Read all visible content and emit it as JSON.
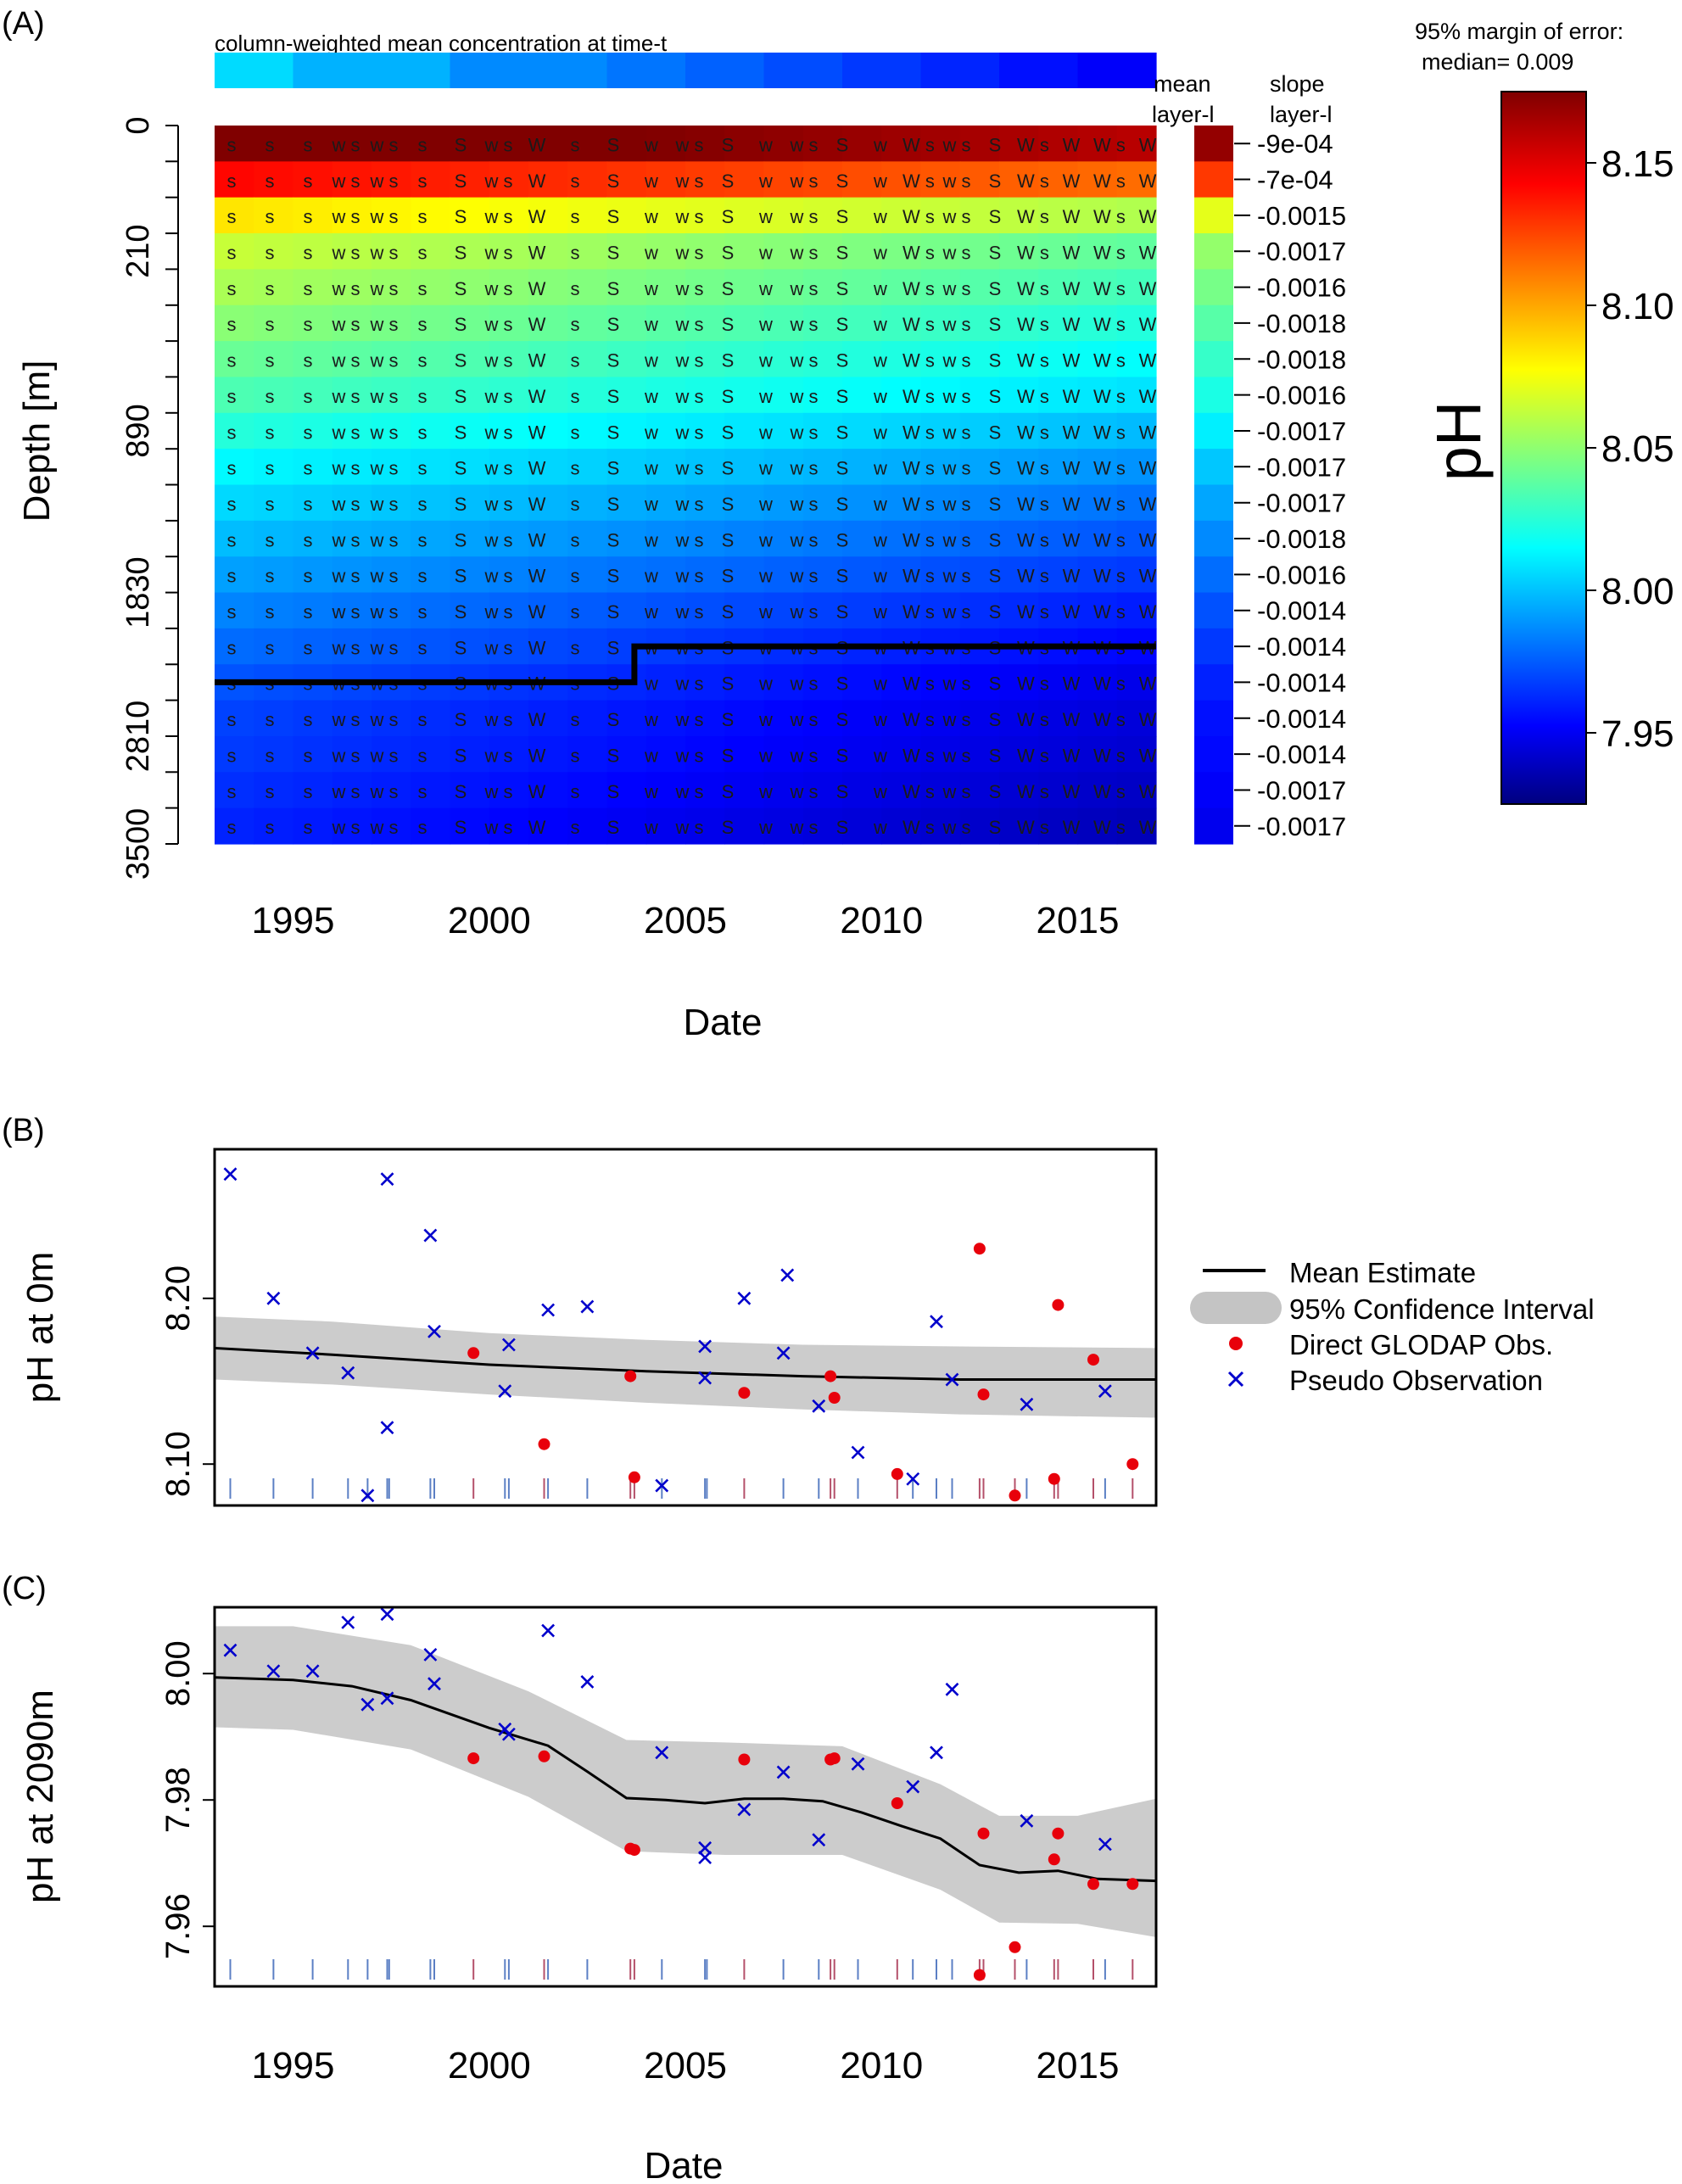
{
  "panel_a": {
    "label": "(A)",
    "top_bar_label": "column-weighted mean concentration at time-t",
    "mean_label_1": "mean",
    "mean_label_2": "layer-l",
    "slope_label_1": "slope",
    "slope_label_2": "layer-l",
    "margin_label_1": "95% margin of error:",
    "margin_label_2": "median= 0.009",
    "colorbar_title": "pH",
    "colorbar_ticks": [
      "8.15",
      "8.10",
      "8.05",
      "8.00",
      "7.95"
    ],
    "ylabel": "Depth [m]",
    "xlabel": "Date",
    "depth_ticks": [
      "0",
      "210",
      "890",
      "1830",
      "2810",
      "3500"
    ],
    "x_ticks": [
      "1995",
      "2000",
      "2005",
      "2010",
      "2015"
    ],
    "slopes": [
      "-9e-04",
      "-7e-04",
      "-0.0015",
      "-0.0017",
      "-0.0016",
      "-0.0018",
      "-0.0018",
      "-0.0016",
      "-0.0017",
      "-0.0017",
      "-0.0017",
      "-0.0018",
      "-0.0016",
      "-0.0014",
      "-0.0014",
      "-0.0014",
      "-0.0014",
      "-0.0014",
      "-0.0017",
      "-0.0017"
    ],
    "symbol_row": [
      "s",
      "s",
      "s",
      "w s",
      "w s",
      "s",
      "S",
      "w s",
      "W",
      "s",
      "S",
      "w",
      "w s",
      "S",
      "w",
      "w s",
      "S",
      "w",
      "W s",
      "w s",
      "S",
      "W s",
      "W",
      "W s",
      "W"
    ],
    "layer_means": [
      8.17,
      8.13,
      8.075,
      8.055,
      8.048,
      8.04,
      8.032,
      8.025,
      8.015,
      8.005,
      7.997,
      7.99,
      7.983,
      7.976,
      7.97,
      7.964,
      7.96,
      7.958,
      7.955,
      7.952
    ],
    "top_bar_values": [
      8.01,
      8.0,
      8.0,
      7.99,
      7.99,
      7.985,
      7.98,
      7.975,
      7.97,
      7.965,
      7.96,
      7.955
    ]
  },
  "panel_b": {
    "label": "(B)",
    "ylabel": "pH at 0m",
    "xlabel": "",
    "y_ticks": [
      "8.20",
      "8.10"
    ],
    "x_ticks": [],
    "legend": {
      "mean": "Mean Estimate",
      "ci": "95% Confidence Interval",
      "glodap": "Direct GLODAP Obs.",
      "pseudo": "Pseudo Observation"
    }
  },
  "panel_c": {
    "label": "(C)",
    "ylabel": "pH at 2090m",
    "xlabel": "Date",
    "y_ticks": [
      "8.00",
      "7.98",
      "7.96"
    ],
    "x_ticks": [
      "1995",
      "2000",
      "2005",
      "2010",
      "2015"
    ]
  },
  "colors": {
    "mean_line": "#000000",
    "ci_band": "#cccccc",
    "glodap": "#e8000b",
    "pseudo": "#0000cc",
    "rug_blue": "#5b7fc4",
    "rug_red": "#b4506a"
  },
  "chart_data": [
    {
      "type": "heatmap",
      "title": "column-weighted mean concentration at time-t",
      "xlabel": "Date",
      "ylabel": "Depth [m]",
      "xlim": [
        1993,
        2017
      ],
      "ylim": [
        3500,
        0
      ],
      "colorbar_range": [
        7.925,
        8.175
      ],
      "colorbar_label": "pH",
      "transition_years": [
        1993.0,
        2003.7,
        2003.7,
        2017.0
      ],
      "transition_layers": [
        15.5,
        15.5,
        14.5,
        14.5
      ]
    },
    {
      "type": "line",
      "title": "",
      "xlabel": "",
      "ylabel": "pH at 0m",
      "xlim": [
        1993,
        2017
      ],
      "ylim": [
        8.075,
        8.29
      ],
      "series": [
        {
          "name": "Mean Estimate",
          "x": [
            1993,
            1996,
            2000,
            2004,
            2008,
            2012,
            2017
          ],
          "y": [
            8.17,
            8.166,
            8.16,
            8.156,
            8.153,
            8.151,
            8.151
          ]
        },
        {
          "name": "95% Confidence Interval",
          "x": [
            1993,
            1996,
            2000,
            2004,
            2008,
            2012,
            2017
          ],
          "lower": [
            8.151,
            8.148,
            8.142,
            8.137,
            8.133,
            8.13,
            8.128
          ],
          "upper": [
            8.189,
            8.186,
            8.179,
            8.175,
            8.172,
            8.171,
            8.17
          ]
        },
        {
          "name": "Direct GLODAP Obs.",
          "x": [
            1999.6,
            2001.4,
            2003.6,
            2003.7,
            2006.5,
            2008.7,
            2008.8,
            2010.4,
            2012.5,
            2012.6,
            2013.4,
            2014.4,
            2014.5,
            2015.4,
            2016.4
          ],
          "y": [
            8.167,
            8.112,
            8.153,
            8.092,
            8.143,
            8.153,
            8.14,
            8.094,
            8.23,
            8.142,
            8.081,
            8.091,
            8.196,
            8.163,
            8.1
          ]
        },
        {
          "name": "Pseudo Observation",
          "x": [
            1993.4,
            1994.5,
            1995.5,
            1996.4,
            1996.9,
            1997.4,
            1997.4,
            1998.5,
            1998.6,
            2000.4,
            2000.5,
            2001.5,
            2002.5,
            2004.4,
            2005.5,
            2005.5,
            2006.5,
            2007.5,
            2007.6,
            2008.4,
            2009.4,
            2010.8,
            2011.4,
            2011.8,
            2013.7,
            2015.7
          ],
          "y": [
            8.275,
            8.2,
            8.167,
            8.155,
            8.081,
            8.122,
            8.272,
            8.238,
            8.18,
            8.144,
            8.172,
            8.193,
            8.195,
            8.087,
            8.152,
            8.171,
            8.2,
            8.167,
            8.214,
            8.135,
            8.107,
            8.091,
            8.186,
            8.151,
            8.136,
            8.144
          ]
        }
      ]
    },
    {
      "type": "line",
      "title": "",
      "xlabel": "Date",
      "ylabel": "pH at 2090m",
      "xlim": [
        1993,
        2017
      ],
      "ylim": [
        7.9505,
        8.0105
      ],
      "series": [
        {
          "name": "Mean Estimate",
          "x": [
            1993,
            1995,
            1996.5,
            1998,
            2000,
            2001.5,
            2002.5,
            2003.5,
            2004.5,
            2005.5,
            2006.5,
            2007.5,
            2008.5,
            2009.5,
            2010.5,
            2011.5,
            2012.5,
            2013.5,
            2014.5,
            2015.5,
            2017
          ],
          "y": [
            7.9994,
            7.999,
            7.998,
            7.9958,
            7.9914,
            7.9886,
            7.9845,
            7.9803,
            7.98,
            7.9795,
            7.9802,
            7.9802,
            7.9798,
            7.978,
            7.9759,
            7.9739,
            7.9697,
            7.9685,
            7.9688,
            7.9675,
            7.9672
          ]
        },
        {
          "name": "95% Confidence Interval",
          "x": [
            1993,
            1995,
            1998,
            2001,
            2003.5,
            2006,
            2009,
            2011.5,
            2013,
            2015,
            2017
          ],
          "lower": [
            7.9915,
            7.9911,
            7.988,
            7.9805,
            7.9719,
            7.9713,
            7.9713,
            7.9658,
            7.9606,
            7.9604,
            7.9583
          ],
          "upper": [
            8.0075,
            8.0075,
            8.0045,
            7.9972,
            7.9895,
            7.9891,
            7.9885,
            7.9825,
            7.9775,
            7.9775,
            7.9802
          ]
        },
        {
          "name": "Direct GLODAP Obs.",
          "x": [
            1999.6,
            2001.4,
            2003.6,
            2003.7,
            2006.5,
            2008.7,
            2008.8,
            2010.4,
            2012.5,
            2012.6,
            2013.4,
            2014.4,
            2014.5,
            2015.4,
            2016.4
          ],
          "y": [
            7.9866,
            7.9869,
            7.9723,
            7.9721,
            7.9864,
            7.9864,
            7.9866,
            7.9795,
            7.9523,
            7.9747,
            7.9567,
            7.9706,
            7.9747,
            7.9667,
            7.9667
          ]
        },
        {
          "name": "Pseudo Observation",
          "x": [
            1993.4,
            1994.5,
            1995.5,
            1996.4,
            1996.9,
            1997.4,
            1997.4,
            1998.5,
            1998.6,
            2000.4,
            2000.5,
            2001.5,
            2002.5,
            2004.4,
            2005.5,
            2005.5,
            2006.5,
            2007.5,
            2008.4,
            2009.4,
            2010.8,
            2011.4,
            2011.8,
            2013.7,
            2015.7
          ],
          "y": [
            8.0037,
            8.0004,
            8.0004,
            8.0081,
            7.9951,
            7.9961,
            8.0094,
            8.003,
            7.9984,
            7.9912,
            7.9904,
            8.0068,
            7.9987,
            7.9875,
            7.9724,
            7.9709,
            7.9785,
            7.9844,
            7.9737,
            7.9857,
            7.9821,
            7.9875,
            7.9975,
            7.9767,
            7.973
          ]
        }
      ],
      "rug_x": [
        1993.4,
        1994.5,
        1995.5,
        1996.4,
        1996.9,
        1997.4,
        1997.45,
        1998.5,
        1998.6,
        1999.6,
        2000.4,
        2000.5,
        2001.4,
        2001.5,
        2002.5,
        2003.6,
        2003.7,
        2004.4,
        2005.5,
        2005.55,
        2006.5,
        2007.5,
        2008.4,
        2008.7,
        2008.8,
        2009.4,
        2010.4,
        2010.8,
        2011.4,
        2011.8,
        2012.5,
        2012.6,
        2013.4,
        2013.7,
        2014.4,
        2014.5,
        2015.4,
        2015.7,
        2016.4
      ],
      "rug_kind": [
        "p",
        "p",
        "p",
        "p",
        "p",
        "p",
        "p",
        "p",
        "p",
        "g",
        "p",
        "p",
        "g",
        "p",
        "p",
        "g",
        "g",
        "p",
        "p",
        "p",
        "g",
        "p",
        "p",
        "g",
        "g",
        "p",
        "g",
        "p",
        "p",
        "p",
        "g",
        "g",
        "g",
        "p",
        "g",
        "g",
        "g",
        "p",
        "g"
      ]
    }
  ]
}
